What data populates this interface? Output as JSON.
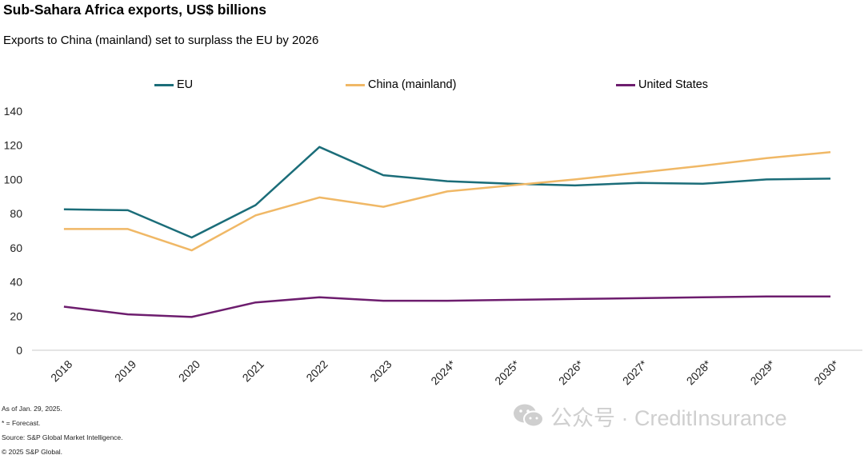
{
  "chart_data": {
    "type": "line",
    "title": "Sub-Sahara Africa exports, US$ billions",
    "subtitle": "Exports to China (mainland) set to surplass the EU by 2026",
    "xlabel": "",
    "ylabel": "",
    "categories": [
      "2018",
      "2019",
      "2020",
      "2021",
      "2022",
      "2023",
      "2024*",
      "2025*",
      "2026*",
      "2027*",
      "2028*",
      "2029*",
      "2030*"
    ],
    "ylim": [
      0,
      140
    ],
    "yticks": [
      "0",
      "20",
      "40",
      "60",
      "80",
      "100",
      "120",
      "140"
    ],
    "legend_position": "top",
    "series": [
      {
        "name": "EU",
        "color": "#1b6d79",
        "values": [
          82.5,
          82,
          66,
          85,
          119,
          102.5,
          99,
          97.5,
          96.5,
          98,
          97.5,
          100,
          100.5
        ]
      },
      {
        "name": "China (mainland)",
        "color": "#f0b866",
        "values": [
          71,
          71,
          58.5,
          79,
          89.5,
          84,
          93,
          96.5,
          100,
          104,
          108,
          112.5,
          116
        ]
      },
      {
        "name": "United States",
        "color": "#6d1d6e",
        "values": [
          25.5,
          21,
          19.5,
          28,
          31,
          29,
          29,
          29.5,
          30,
          30.5,
          31,
          31.5,
          31.5
        ]
      }
    ]
  },
  "notes": {
    "as_of": "As of Jan. 29, 2025.",
    "forecast": "* = Forecast.",
    "source": "Source: S&P Global Market Intelligence.",
    "copyright": "© 2025 S&P Global."
  },
  "watermark": {
    "text": "公众号 · CreditInsurance",
    "icon": "wechat-icon"
  }
}
